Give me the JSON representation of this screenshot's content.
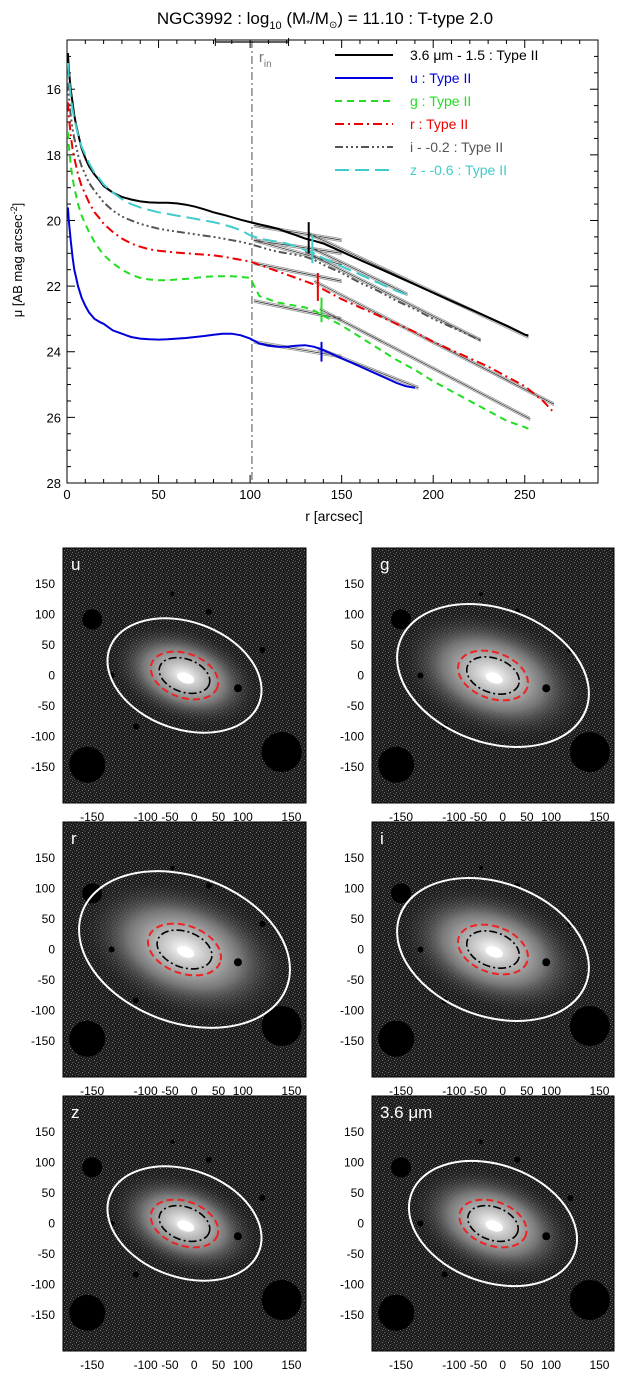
{
  "chart_data": [
    {
      "type": "line",
      "title_parts": {
        "lead": "NGC3992 : log",
        "log_sub": "10",
        "paren": " (M",
        "star": "*",
        "slash": "/M",
        "sun": "⊙",
        "rest": ") = 11.10 : T-type 2.0"
      },
      "xlabel": "r [arcsec]",
      "ylabel_parts": {
        "main": "μ [AB mag arcsec",
        "sup": "-2",
        "close": "]"
      },
      "xlim": [
        0,
        290
      ],
      "ylim": [
        28,
        14.5
      ],
      "y_inverted": true,
      "xticks": [
        0,
        50,
        100,
        150,
        200,
        250
      ],
      "yticks": [
        16,
        18,
        20,
        22,
        24,
        26,
        28
      ],
      "r_in_label": "r",
      "r_in_sub": "in",
      "r_in": 101,
      "r_in_range": [
        81,
        121
      ],
      "series": [
        {
          "name": "3.6 μm - 1.5 : Type II",
          "color": "#000000",
          "dash": "solid",
          "x": [
            0.5,
            1,
            2,
            3,
            4,
            5,
            6,
            8,
            10,
            12,
            15,
            18,
            20,
            25,
            30,
            35,
            40,
            45,
            50,
            55,
            60,
            65,
            70,
            75,
            80,
            85,
            90,
            95,
            100,
            105,
            110,
            115,
            120,
            125,
            130,
            135,
            140,
            150,
            160,
            170,
            180,
            190,
            200,
            210,
            220,
            230,
            240,
            250,
            252
          ],
          "y": [
            14.9,
            15.4,
            16.0,
            16.4,
            16.8,
            17.1,
            17.35,
            17.8,
            18.1,
            18.35,
            18.6,
            18.8,
            18.95,
            19.15,
            19.28,
            19.36,
            19.42,
            19.45,
            19.46,
            19.46,
            19.48,
            19.52,
            19.58,
            19.66,
            19.75,
            19.82,
            19.9,
            19.98,
            20.05,
            20.12,
            20.18,
            20.25,
            20.35,
            20.45,
            20.55,
            20.62,
            20.7,
            20.95,
            21.2,
            21.45,
            21.7,
            21.95,
            22.2,
            22.45,
            22.7,
            22.95,
            23.2,
            23.48,
            23.5
          ]
        },
        {
          "name": "u : Type II",
          "color": "#0000dd",
          "dash": "solid",
          "x": [
            0.5,
            1,
            2,
            3,
            4,
            5,
            6,
            8,
            10,
            12,
            15,
            18,
            20,
            25,
            30,
            35,
            40,
            45,
            50,
            55,
            60,
            65,
            70,
            75,
            80,
            85,
            90,
            95,
            100,
            105,
            110,
            115,
            120,
            125,
            130,
            135,
            140,
            150,
            160,
            170,
            180,
            185,
            190
          ],
          "y": [
            19.6,
            20.0,
            20.6,
            21.1,
            21.5,
            21.75,
            22.0,
            22.35,
            22.6,
            22.8,
            23.0,
            23.1,
            23.15,
            23.35,
            23.45,
            23.55,
            23.6,
            23.62,
            23.63,
            23.62,
            23.6,
            23.58,
            23.55,
            23.52,
            23.48,
            23.45,
            23.45,
            23.5,
            23.6,
            23.75,
            23.82,
            23.85,
            23.85,
            23.82,
            23.8,
            23.85,
            23.95,
            24.2,
            24.45,
            24.7,
            24.95,
            25.05,
            25.1
          ]
        },
        {
          "name": "g : Type II",
          "color": "#22dd22",
          "dash": "dash",
          "x": [
            0.5,
            1,
            2,
            3,
            4,
            5,
            6,
            8,
            10,
            12,
            15,
            18,
            20,
            25,
            30,
            35,
            40,
            45,
            50,
            55,
            60,
            65,
            70,
            75,
            80,
            85,
            90,
            95,
            100,
            105,
            110,
            115,
            120,
            125,
            130,
            135,
            140,
            150,
            160,
            170,
            180,
            190,
            200,
            210,
            220,
            230,
            240,
            250,
            252
          ],
          "y": [
            17.3,
            17.7,
            18.3,
            18.7,
            19.0,
            19.25,
            19.5,
            19.85,
            20.1,
            20.35,
            20.65,
            20.9,
            21.05,
            21.3,
            21.5,
            21.65,
            21.75,
            21.8,
            21.82,
            21.82,
            21.8,
            21.78,
            21.75,
            21.72,
            21.7,
            21.7,
            21.7,
            21.72,
            21.75,
            22.3,
            22.4,
            22.5,
            22.55,
            22.6,
            22.65,
            22.75,
            22.9,
            23.2,
            23.55,
            23.9,
            24.25,
            24.55,
            24.9,
            25.2,
            25.5,
            25.8,
            26.1,
            26.3,
            26.35
          ]
        },
        {
          "name": "r : Type II",
          "color": "#ee0000",
          "dash": "dashdot",
          "x": [
            0.5,
            1,
            2,
            3,
            4,
            5,
            6,
            8,
            10,
            12,
            15,
            18,
            20,
            25,
            30,
            35,
            40,
            45,
            50,
            55,
            60,
            65,
            70,
            75,
            80,
            85,
            90,
            95,
            100,
            105,
            110,
            115,
            120,
            125,
            130,
            135,
            140,
            150,
            160,
            170,
            180,
            190,
            200,
            210,
            220,
            230,
            240,
            250,
            260,
            265
          ],
          "y": [
            16.4,
            16.8,
            17.4,
            17.8,
            18.1,
            18.35,
            18.6,
            18.95,
            19.2,
            19.45,
            19.75,
            19.95,
            20.1,
            20.35,
            20.55,
            20.7,
            20.8,
            20.88,
            20.92,
            20.95,
            20.98,
            21.0,
            21.02,
            21.04,
            21.06,
            21.1,
            21.15,
            21.2,
            21.25,
            21.35,
            21.45,
            21.55,
            21.65,
            21.75,
            21.85,
            21.95,
            22.1,
            22.4,
            22.65,
            22.9,
            23.15,
            23.4,
            23.7,
            23.95,
            24.2,
            24.45,
            24.75,
            25.05,
            25.5,
            25.8
          ]
        },
        {
          "name": "i - -0.2 : Type II",
          "color": "#555555",
          "dash": "dashdotdotdot",
          "x": [
            0.5,
            1,
            2,
            3,
            4,
            5,
            6,
            8,
            10,
            12,
            15,
            18,
            20,
            25,
            30,
            35,
            40,
            45,
            50,
            55,
            60,
            65,
            70,
            75,
            80,
            85,
            90,
            95,
            100,
            105,
            110,
            115,
            120,
            125,
            130,
            135,
            140,
            150,
            160,
            170,
            180,
            190,
            200,
            210,
            220,
            226
          ],
          "y": [
            15.8,
            16.2,
            16.8,
            17.2,
            17.5,
            17.75,
            18.0,
            18.35,
            18.6,
            18.85,
            19.1,
            19.3,
            19.45,
            19.7,
            19.88,
            20.0,
            20.1,
            20.18,
            20.25,
            20.3,
            20.34,
            20.38,
            20.42,
            20.46,
            20.5,
            20.55,
            20.6,
            20.65,
            20.72,
            20.8,
            20.88,
            20.95,
            21.0,
            21.05,
            21.1,
            21.2,
            21.35,
            21.6,
            21.9,
            22.15,
            22.45,
            22.7,
            23.0,
            23.25,
            23.5,
            23.65
          ]
        },
        {
          "name": "z - -0.6 : Type II",
          "color": "#40cccc",
          "dash": "longdash",
          "x": [
            0.5,
            1,
            2,
            3,
            4,
            5,
            6,
            8,
            10,
            12,
            15,
            18,
            20,
            25,
            30,
            35,
            40,
            45,
            50,
            55,
            60,
            65,
            70,
            75,
            80,
            85,
            90,
            95,
            100,
            105,
            110,
            115,
            120,
            125,
            130,
            135,
            140,
            150,
            160,
            170,
            180,
            185
          ],
          "y": [
            15.2,
            15.6,
            16.2,
            16.6,
            16.9,
            17.15,
            17.4,
            17.75,
            18.0,
            18.25,
            18.55,
            18.75,
            18.9,
            19.15,
            19.35,
            19.5,
            19.6,
            19.68,
            19.75,
            19.8,
            19.85,
            19.9,
            19.95,
            20.0,
            20.05,
            20.12,
            20.2,
            20.3,
            20.45,
            20.55,
            20.6,
            20.65,
            20.7,
            20.8,
            20.9,
            21.0,
            21.15,
            21.4,
            21.65,
            21.9,
            22.15,
            22.25
          ]
        }
      ],
      "break_marks": [
        {
          "series": 0,
          "x": 132,
          "y_from": 20.05,
          "y_to": 21.0
        },
        {
          "series": 5,
          "x": 134,
          "y_from": 20.45,
          "y_to": 21.3
        },
        {
          "series": 3,
          "x": 137,
          "y_from": 21.6,
          "y_to": 22.45
        },
        {
          "series": 2,
          "x": 139,
          "y_from": 22.35,
          "y_to": 23.1
        },
        {
          "series": 1,
          "x": 139,
          "y_from": 23.7,
          "y_to": 24.3
        }
      ],
      "fits": [
        {
          "x": [
            102,
            150
          ],
          "y": [
            20.15,
            20.6
          ]
        },
        {
          "x": [
            132,
            252
          ],
          "y": [
            20.4,
            23.55
          ]
        },
        {
          "x": [
            102,
            150
          ],
          "y": [
            20.6,
            21.0
          ]
        },
        {
          "x": [
            134,
            186
          ],
          "y": [
            20.85,
            22.25
          ]
        },
        {
          "x": [
            102,
            150
          ],
          "y": [
            20.6,
            21.35
          ]
        },
        {
          "x": [
            130,
            226
          ],
          "y": [
            20.95,
            23.65
          ]
        },
        {
          "x": [
            102,
            150
          ],
          "y": [
            21.3,
            21.85
          ]
        },
        {
          "x": [
            135,
            266
          ],
          "y": [
            21.85,
            25.6
          ]
        },
        {
          "x": [
            102,
            150
          ],
          "y": [
            22.45,
            23.0
          ]
        },
        {
          "x": [
            138,
            253
          ],
          "y": [
            22.7,
            26.05
          ]
        },
        {
          "x": [
            102,
            150
          ],
          "y": [
            23.7,
            24.15
          ]
        },
        {
          "x": [
            137,
            192
          ],
          "y": [
            23.9,
            25.1
          ]
        }
      ]
    },
    {
      "type": "image",
      "panels": [
        {
          "label": "u",
          "ellipse_scale": 0.84,
          "inner_scale": 0.48
        },
        {
          "label": "g",
          "ellipse_scale": 1.05,
          "inner_scale": 0.5
        },
        {
          "label": "r",
          "ellipse_scale": 1.15,
          "inner_scale": 0.52
        },
        {
          "label": "i",
          "ellipse_scale": 1.05,
          "inner_scale": 0.5
        },
        {
          "label": "z",
          "ellipse_scale": 0.84,
          "inner_scale": 0.48
        },
        {
          "label": "3.6 μm",
          "ellipse_scale": 0.92,
          "inner_scale": 0.48
        }
      ],
      "yticks": [
        "150",
        "100",
        "50",
        "0",
        "-50",
        "-100",
        "-150"
      ],
      "xticks": [
        "-150",
        "-100",
        "-50",
        "0",
        "50",
        "100",
        "150"
      ]
    }
  ]
}
